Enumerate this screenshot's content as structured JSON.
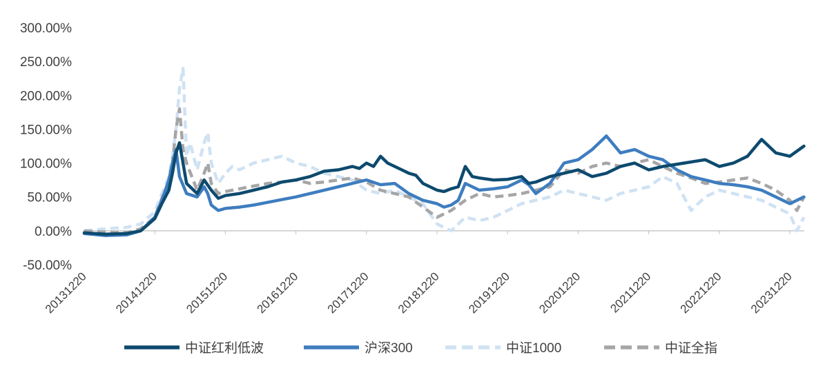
{
  "chart_data": {
    "type": "line",
    "x_ticks": [
      "20131220",
      "20141220",
      "20151220",
      "20161220",
      "20171220",
      "20181220",
      "20191220",
      "20201220",
      "20211220",
      "20221220",
      "20231220"
    ],
    "x_range": [
      "20131220",
      "20240220"
    ],
    "y_ticks": [
      "300.00%",
      "250.00%",
      "200.00%",
      "150.00%",
      "100.00%",
      "50.00%",
      "0.00%",
      "-50.00%"
    ],
    "ylim": [
      -50,
      300
    ],
    "grid": false,
    "legend_position": "bottom",
    "series": [
      {
        "name": "中证红利低波",
        "color": "#0d4a6e",
        "style": "solid",
        "x": [
          0,
          0.3,
          0.6,
          0.8,
          1.0,
          1.1,
          1.2,
          1.25,
          1.3,
          1.35,
          1.45,
          1.6,
          1.7,
          1.8,
          1.9,
          2.0,
          2.2,
          2.4,
          2.6,
          2.8,
          3.0,
          3.2,
          3.4,
          3.6,
          3.8,
          3.9,
          4.0,
          4.1,
          4.2,
          4.3,
          4.5,
          4.6,
          4.7,
          4.8,
          5.0,
          5.1,
          5.2,
          5.3,
          5.4,
          5.5,
          5.6,
          5.8,
          6.0,
          6.2,
          6.3,
          6.4,
          6.6,
          6.8,
          7.0,
          7.2,
          7.4,
          7.6,
          7.8,
          8.0,
          8.2,
          8.5,
          8.8,
          9.0,
          9.2,
          9.4,
          9.6,
          9.8,
          10.0,
          10.2
        ],
        "values": [
          -3,
          -5,
          -4,
          0,
          18,
          40,
          60,
          85,
          115,
          130,
          70,
          55,
          75,
          60,
          48,
          52,
          55,
          60,
          65,
          72,
          75,
          80,
          88,
          90,
          95,
          92,
          100,
          95,
          110,
          100,
          90,
          85,
          82,
          70,
          60,
          58,
          62,
          65,
          95,
          80,
          78,
          75,
          76,
          80,
          70,
          72,
          80,
          85,
          90,
          80,
          85,
          95,
          100,
          90,
          95,
          100,
          105,
          95,
          100,
          110,
          135,
          115,
          110,
          125
        ]
      },
      {
        "name": "沪深300",
        "color": "#3e7dbf",
        "style": "solid",
        "x": [
          0,
          0.3,
          0.6,
          0.8,
          1.0,
          1.1,
          1.2,
          1.25,
          1.3,
          1.35,
          1.45,
          1.6,
          1.7,
          1.75,
          1.8,
          1.9,
          2.0,
          2.2,
          2.4,
          2.6,
          2.8,
          3.0,
          3.2,
          3.4,
          3.6,
          3.8,
          4.0,
          4.2,
          4.4,
          4.6,
          4.8,
          5.0,
          5.1,
          5.2,
          5.3,
          5.4,
          5.6,
          5.8,
          6.0,
          6.2,
          6.3,
          6.4,
          6.6,
          6.8,
          7.0,
          7.2,
          7.4,
          7.6,
          7.8,
          8.0,
          8.2,
          8.4,
          8.6,
          8.8,
          9.0,
          9.2,
          9.4,
          9.6,
          9.8,
          10.0,
          10.2
        ],
        "values": [
          -4,
          -7,
          -6,
          0,
          20,
          45,
          75,
          100,
          120,
          80,
          55,
          50,
          65,
          55,
          38,
          30,
          33,
          35,
          38,
          42,
          46,
          50,
          55,
          60,
          65,
          70,
          75,
          68,
          70,
          55,
          45,
          40,
          35,
          38,
          45,
          70,
          60,
          62,
          65,
          75,
          68,
          55,
          70,
          100,
          105,
          120,
          140,
          115,
          120,
          110,
          105,
          90,
          80,
          75,
          70,
          68,
          65,
          60,
          50,
          40,
          50
        ]
      },
      {
        "name": "中证1000",
        "color": "#cfe2f3",
        "style": "dashed",
        "x": [
          0,
          0.3,
          0.6,
          0.8,
          1.0,
          1.1,
          1.2,
          1.25,
          1.3,
          1.35,
          1.4,
          1.45,
          1.5,
          1.6,
          1.7,
          1.75,
          1.8,
          1.9,
          2.0,
          2.1,
          2.2,
          2.4,
          2.6,
          2.8,
          3.0,
          3.2,
          3.4,
          3.6,
          3.8,
          4.0,
          4.2,
          4.4,
          4.6,
          4.8,
          5.0,
          5.2,
          5.4,
          5.6,
          5.8,
          6.0,
          6.2,
          6.4,
          6.6,
          6.8,
          7.0,
          7.2,
          7.4,
          7.6,
          7.8,
          8.0,
          8.2,
          8.4,
          8.6,
          8.8,
          9.0,
          9.2,
          9.4,
          9.6,
          9.8,
          10.0,
          10.1,
          10.2
        ],
        "values": [
          0,
          3,
          5,
          10,
          28,
          55,
          80,
          110,
          150,
          210,
          240,
          110,
          130,
          90,
          130,
          145,
          100,
          70,
          85,
          95,
          90,
          100,
          105,
          110,
          100,
          95,
          85,
          80,
          75,
          60,
          55,
          60,
          50,
          40,
          10,
          0,
          20,
          15,
          20,
          30,
          40,
          45,
          50,
          60,
          55,
          50,
          45,
          55,
          60,
          65,
          80,
          70,
          30,
          50,
          60,
          55,
          50,
          45,
          35,
          25,
          0,
          20
        ]
      },
      {
        "name": "中证全指",
        "color": "#a6a6a6",
        "style": "dashed",
        "x": [
          0,
          0.3,
          0.6,
          0.8,
          1.0,
          1.1,
          1.2,
          1.25,
          1.3,
          1.35,
          1.4,
          1.45,
          1.6,
          1.7,
          1.75,
          1.8,
          1.9,
          2.0,
          2.2,
          2.4,
          2.6,
          2.8,
          3.0,
          3.2,
          3.4,
          3.6,
          3.8,
          4.0,
          4.2,
          4.4,
          4.6,
          4.8,
          5.0,
          5.2,
          5.4,
          5.6,
          5.8,
          6.0,
          6.2,
          6.4,
          6.6,
          6.8,
          7.0,
          7.2,
          7.4,
          7.6,
          7.8,
          8.0,
          8.2,
          8.4,
          8.6,
          8.8,
          9.0,
          9.2,
          9.4,
          9.6,
          9.8,
          10.0,
          10.1,
          10.2
        ],
        "values": [
          0,
          -2,
          -3,
          3,
          20,
          48,
          70,
          100,
          150,
          180,
          120,
          100,
          60,
          85,
          100,
          70,
          55,
          58,
          62,
          66,
          70,
          72,
          75,
          70,
          72,
          75,
          78,
          72,
          60,
          55,
          50,
          35,
          20,
          30,
          45,
          55,
          50,
          52,
          55,
          60,
          65,
          90,
          85,
          95,
          100,
          95,
          100,
          105,
          95,
          85,
          78,
          70,
          72,
          75,
          78,
          70,
          60,
          45,
          30,
          50
        ]
      }
    ]
  }
}
